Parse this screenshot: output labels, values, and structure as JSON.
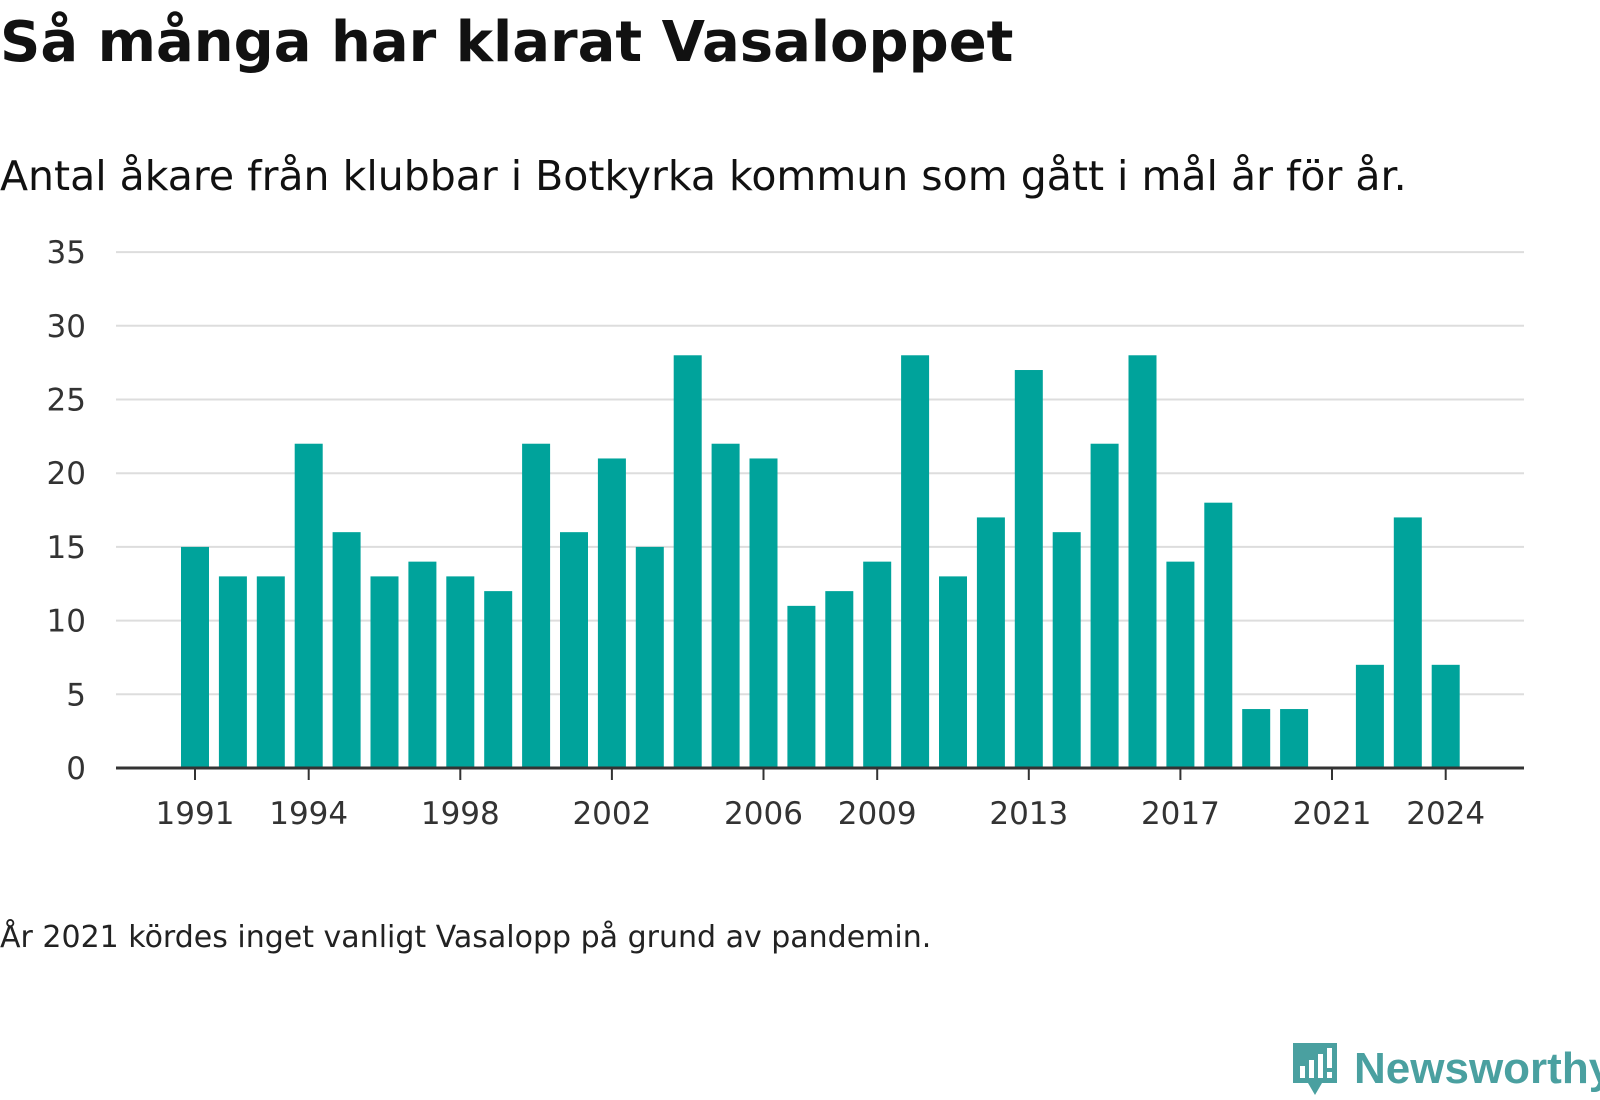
{
  "title": "Så många har klarat Vasaloppet",
  "subtitle": "Antal åkare från klubbar i Botkyrka kommun som gått i mål år för år.",
  "note": "År 2021 kördes inget vanligt Vasalopp på grund av pandemin.",
  "brand": {
    "name": "Newsworthy",
    "color": "#4aa0a0"
  },
  "colors": {
    "bar": "#00a39b",
    "grid": "#dddddd",
    "axis": "#333333"
  },
  "chart_data": {
    "type": "bar",
    "categories": [
      1991,
      1992,
      1993,
      1994,
      1995,
      1996,
      1997,
      1998,
      1999,
      2000,
      2001,
      2002,
      2003,
      2004,
      2005,
      2006,
      2007,
      2008,
      2009,
      2010,
      2011,
      2012,
      2013,
      2014,
      2015,
      2016,
      2017,
      2018,
      2019,
      2020,
      2021,
      2022,
      2023,
      2024
    ],
    "values": [
      15,
      13,
      13,
      22,
      16,
      13,
      14,
      13,
      12,
      22,
      16,
      21,
      15,
      28,
      22,
      21,
      11,
      12,
      14,
      28,
      13,
      17,
      27,
      16,
      22,
      28,
      14,
      18,
      4,
      4,
      0,
      7,
      17,
      7
    ],
    "xticks": [
      1991,
      1994,
      1998,
      2002,
      2006,
      2009,
      2013,
      2017,
      2021,
      2024
    ],
    "yticks": [
      0,
      5,
      10,
      15,
      20,
      25,
      30,
      35
    ],
    "ylim": [
      0,
      35
    ],
    "grid": true,
    "legend": "none"
  }
}
